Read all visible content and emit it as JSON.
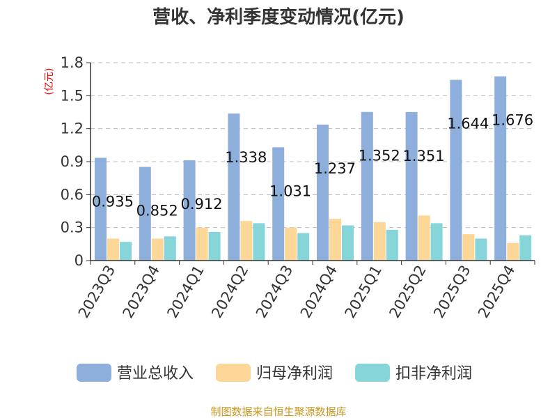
{
  "chart_data": {
    "type": "bar",
    "title": "营收、净利季度变动情况(亿元)",
    "unit_label": "(亿元)",
    "xlabel": "",
    "ylabel": "",
    "categories": [
      "2023Q3",
      "2023Q4",
      "2024Q1",
      "2024Q2",
      "2024Q3",
      "2024Q4",
      "2025Q1",
      "2025Q2",
      "2025Q3",
      "2025Q4"
    ],
    "ylim": [
      0,
      1.8
    ],
    "yticks": [
      "0",
      "0.3",
      "0.6",
      "0.9",
      "1.2",
      "1.5",
      "1.8"
    ],
    "grid": true,
    "legend_position": "bottom",
    "series": [
      {
        "name": "营业总收入",
        "color": "#8eaedc",
        "values": [
          0.935,
          0.852,
          0.912,
          1.338,
          1.031,
          1.237,
          1.352,
          1.351,
          1.644,
          1.676
        ],
        "labels": [
          "0.935",
          "0.852",
          "0.912",
          "1.338",
          "1.031",
          "1.237",
          "1.352",
          "1.351",
          "1.644",
          "1.676"
        ]
      },
      {
        "name": "归母净利润",
        "color": "#fdd797",
        "values": [
          0.2,
          0.2,
          0.3,
          0.36,
          0.3,
          0.38,
          0.35,
          0.41,
          0.24,
          0.16
        ]
      },
      {
        "name": "扣非净利润",
        "color": "#86d5d9",
        "values": [
          0.17,
          0.22,
          0.26,
          0.34,
          0.25,
          0.32,
          0.28,
          0.34,
          0.2,
          0.23
        ]
      }
    ]
  },
  "source": "制图数据来自恒生聚源数据库"
}
